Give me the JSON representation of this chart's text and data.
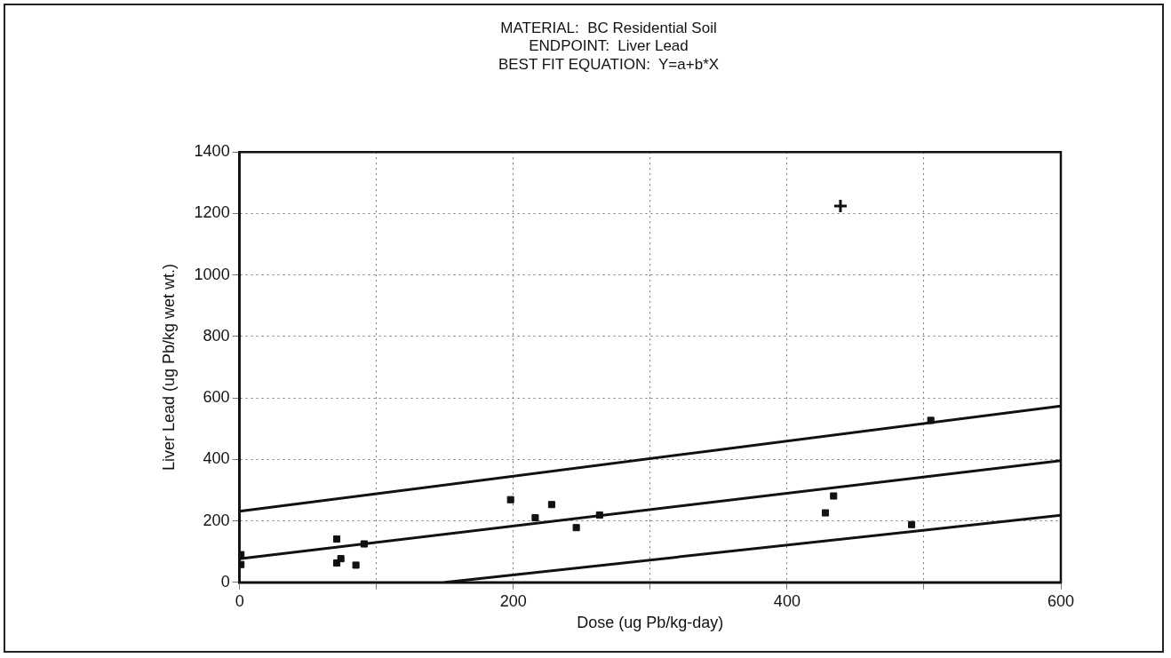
{
  "chart_data": {
    "type": "scatter",
    "title": "MATERIAL:  BC Residential Soil\nENDPOINT:  Liver Lead\nBEST FIT EQUATION:  Y=a+b*X",
    "xlabel": "Dose (ug Pb/kg-day)",
    "ylabel": "Liver Lead (ug Pb/kg wet wt.)",
    "xlim": [
      0,
      600
    ],
    "xticks": [
      0,
      {
        "value": 100,
        "label": null
      },
      200,
      {
        "value": 300,
        "label": null
      },
      400,
      {
        "value": 500,
        "label": null
      },
      600
    ],
    "ylim": [
      0,
      1400
    ],
    "yticks": [
      0,
      200,
      400,
      600,
      800,
      1000,
      1200,
      1400
    ],
    "grid": true,
    "legend": false,
    "series": [
      {
        "marker": "square",
        "color": "#111111",
        "x": [
          1,
          1,
          71,
          71,
          74,
          85,
          91,
          198,
          216,
          228,
          246,
          263,
          428,
          434,
          491,
          505
        ],
        "values": [
          90,
          58,
          141,
          63,
          77,
          56,
          125,
          269,
          210,
          253,
          178,
          219,
          226,
          281,
          188,
          527
        ]
      },
      {
        "marker": "cross",
        "color": "#111111",
        "x": [
          439
        ],
        "values": [
          1224
        ]
      },
      {
        "type": "line",
        "marker": "none",
        "color": "#111111",
        "x": [
          0,
          600
        ],
        "values": [
          231,
          574
        ]
      },
      {
        "type": "line",
        "marker": "none",
        "color": "#111111",
        "x": [
          0,
          600
        ],
        "values": [
          77,
          396
        ]
      },
      {
        "type": "line",
        "marker": "none",
        "color": "#111111",
        "x": [
          150,
          600
        ],
        "values": [
          0,
          218
        ]
      }
    ]
  }
}
